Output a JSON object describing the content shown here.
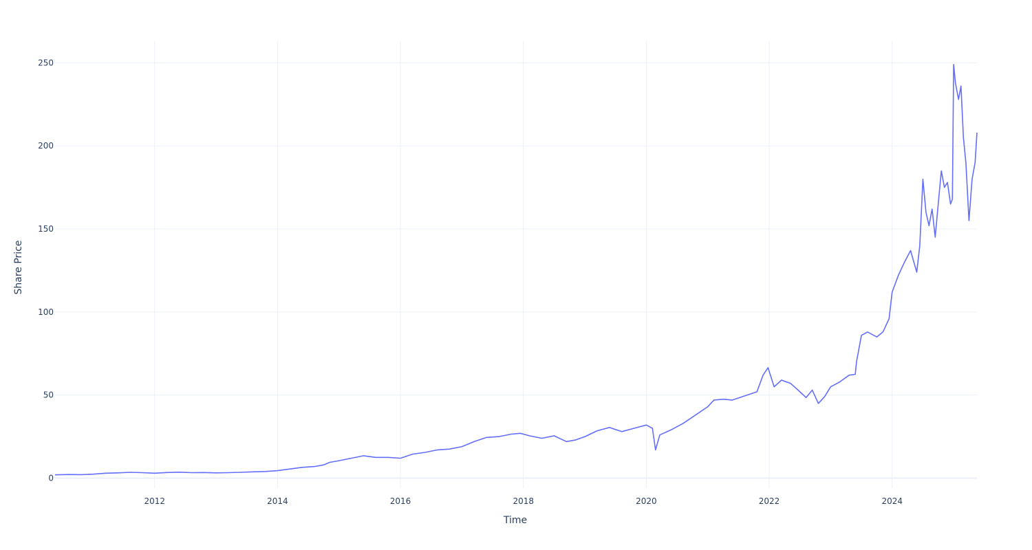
{
  "chart_data": {
    "type": "line",
    "title": "",
    "xlabel": "Time",
    "ylabel": "Share Price",
    "x_ticks": [
      "2012",
      "2014",
      "2016",
      "2018",
      "2020",
      "2022",
      "2024"
    ],
    "y_ticks": [
      "0",
      "50",
      "100",
      "150",
      "200",
      "250"
    ],
    "xlim": [
      2010.38,
      2025.38
    ],
    "ylim": [
      -6,
      263
    ],
    "grid": true,
    "legend": "none",
    "colors": {
      "line": "#636efa",
      "grid": "#ebf0f8",
      "zero_line": "#ebf0f8",
      "text": "#2a3f5f"
    },
    "series": [
      {
        "x": [
          2010.38,
          2010.6,
          2010.8,
          2011.0,
          2011.2,
          2011.4,
          2011.6,
          2011.8,
          2012.0,
          2012.2,
          2012.4,
          2012.6,
          2012.8,
          2013.0,
          2013.2,
          2013.4,
          2013.6,
          2013.8,
          2014.0,
          2014.2,
          2014.4,
          2014.6,
          2014.75,
          2014.85,
          2015.0,
          2015.2,
          2015.4,
          2015.6,
          2015.8,
          2016.0,
          2016.2,
          2016.4,
          2016.6,
          2016.8,
          2017.0,
          2017.2,
          2017.4,
          2017.6,
          2017.8,
          2017.95,
          2018.1,
          2018.3,
          2018.5,
          2018.7,
          2018.85,
          2019.0,
          2019.2,
          2019.4,
          2019.6,
          2019.8,
          2020.0,
          2020.1,
          2020.15,
          2020.22,
          2020.4,
          2020.6,
          2020.8,
          2021.0,
          2021.1,
          2021.25,
          2021.4,
          2021.6,
          2021.8,
          2021.9,
          2021.98,
          2022.08,
          2022.2,
          2022.35,
          2022.5,
          2022.6,
          2022.7,
          2022.8,
          2022.9,
          2023.0,
          2023.15,
          2023.3,
          2023.4,
          2023.42,
          2023.5,
          2023.6,
          2023.75,
          2023.85,
          2023.95,
          2024.0,
          2024.1,
          2024.2,
          2024.3,
          2024.4,
          2024.45,
          2024.5,
          2024.55,
          2024.6,
          2024.65,
          2024.7,
          2024.75,
          2024.8,
          2024.85,
          2024.9,
          2024.95,
          2024.98,
          2025.0,
          2025.03,
          2025.08,
          2025.12,
          2025.16,
          2025.2,
          2025.25,
          2025.3,
          2025.35,
          2025.38
        ],
        "y": [
          2,
          2.2,
          2.1,
          2.4,
          3.0,
          3.2,
          3.5,
          3.3,
          3.0,
          3.4,
          3.6,
          3.3,
          3.4,
          3.2,
          3.3,
          3.5,
          3.8,
          4.0,
          4.5,
          5.5,
          6.5,
          7.0,
          8.0,
          9.5,
          10.5,
          12.0,
          13.5,
          12.5,
          12.5,
          12.0,
          14.5,
          15.5,
          17.0,
          17.5,
          19.0,
          22.0,
          24.5,
          25.0,
          26.5,
          27.0,
          25.5,
          24.0,
          25.5,
          22.0,
          23.0,
          25.0,
          28.5,
          30.5,
          28.0,
          30.0,
          32.0,
          30.0,
          17.0,
          26.0,
          29.0,
          33.0,
          38.0,
          43.0,
          47.0,
          47.5,
          47.0,
          49.5,
          52.0,
          62.0,
          66.5,
          55.0,
          59.0,
          57.0,
          52.0,
          48.5,
          53.0,
          45.0,
          49.0,
          55.0,
          58.0,
          62.0,
          62.5,
          70.0,
          86.0,
          88.0,
          85.0,
          88.0,
          96.0,
          112.0,
          122.0,
          130.0,
          137.0,
          124.0,
          140.0,
          180.0,
          160.0,
          152.0,
          162.0,
          145.0,
          165.0,
          185.0,
          175.0,
          178.0,
          165.0,
          168.0,
          249.0,
          238.0,
          228.0,
          236.0,
          205.0,
          190.0,
          155.0,
          180.0,
          190.0,
          208.0
        ]
      }
    ]
  }
}
